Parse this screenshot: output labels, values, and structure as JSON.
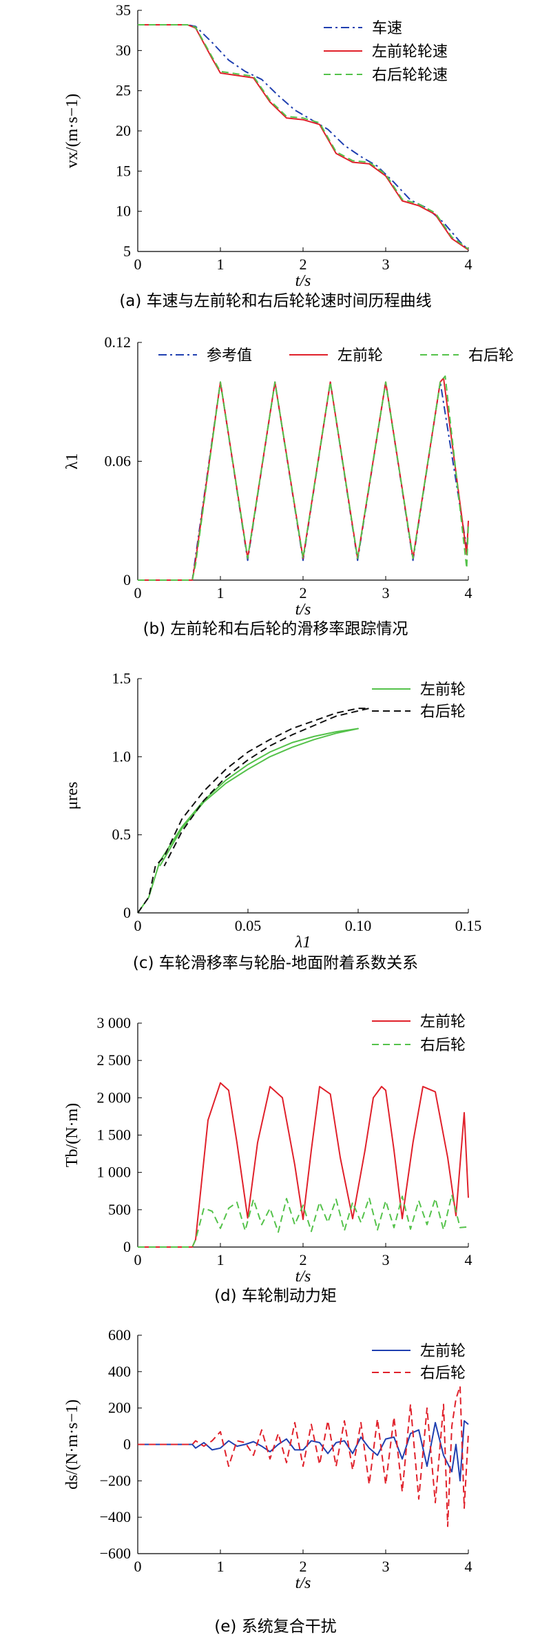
{
  "chart_data": [
    {
      "id": "a",
      "type": "line",
      "caption": "(a) 车速与左前轮和右后轮轮速时间历程曲线",
      "xlabel": "t/s",
      "ylabel": "vx/(m·s−1)",
      "xlim": [
        0,
        4
      ],
      "ylim": [
        5,
        35
      ],
      "xticks": [
        "0",
        "1",
        "2",
        "3",
        "4"
      ],
      "yticks": [
        "5",
        "10",
        "15",
        "20",
        "25",
        "30",
        "35"
      ],
      "legend": "top-right",
      "series": [
        {
          "name": "车速",
          "color": "#1f3fb0",
          "dash": "dashdot",
          "x": [
            0,
            0.6,
            0.7,
            0.9,
            1.1,
            1.3,
            1.5,
            1.7,
            1.9,
            2.1,
            2.3,
            2.5,
            2.7,
            2.9,
            3.1,
            3.3,
            3.5,
            3.7,
            3.9,
            4.0
          ],
          "y": [
            33.2,
            33.2,
            33.0,
            31.0,
            28.8,
            27.4,
            26.4,
            24.4,
            22.6,
            21.4,
            20.2,
            18.2,
            16.8,
            15.6,
            13.6,
            11.4,
            10.4,
            8.6,
            6.2,
            5.2
          ]
        },
        {
          "name": "左前轮轮速",
          "color": "#e0202a",
          "dash": "solid",
          "x": [
            0,
            0.6,
            0.7,
            0.9,
            1.0,
            1.2,
            1.4,
            1.6,
            1.8,
            2.0,
            2.2,
            2.4,
            2.6,
            2.8,
            3.0,
            3.2,
            3.4,
            3.6,
            3.8,
            4.0
          ],
          "y": [
            33.2,
            33.2,
            32.8,
            29.0,
            27.2,
            26.9,
            26.6,
            23.6,
            21.6,
            21.4,
            20.8,
            17.2,
            16.1,
            15.9,
            14.4,
            11.3,
            10.7,
            9.6,
            6.6,
            5.2
          ]
        },
        {
          "name": "右后轮轮速",
          "color": "#54c24a",
          "dash": "dashed",
          "x": [
            0,
            0.6,
            0.7,
            0.9,
            1.0,
            1.2,
            1.4,
            1.6,
            1.8,
            2.0,
            2.2,
            2.4,
            2.6,
            2.8,
            3.0,
            3.2,
            3.4,
            3.6,
            3.8,
            4.0
          ],
          "y": [
            33.2,
            33.2,
            32.9,
            29.2,
            27.4,
            27.1,
            26.8,
            23.8,
            21.8,
            21.6,
            21.0,
            17.4,
            16.3,
            16.1,
            14.6,
            11.5,
            10.9,
            9.8,
            6.8,
            5.3
          ]
        }
      ]
    },
    {
      "id": "b",
      "type": "line",
      "caption": "(b) 左前轮和右后轮的滑移率跟踪情况",
      "xlabel": "t/s",
      "ylabel": "λ1",
      "xlim": [
        0,
        4
      ],
      "ylim": [
        0,
        0.12
      ],
      "xticks": [
        "0",
        "1",
        "2",
        "3",
        "4"
      ],
      "yticks": [
        "0",
        "0.06",
        "0.12"
      ],
      "legend": "top",
      "series": [
        {
          "name": "参考值",
          "color": "#1f3fb0",
          "dash": "dashdot",
          "x": [
            0,
            0.66,
            0.7,
            1.0,
            1.33,
            1.66,
            2.0,
            2.33,
            2.66,
            3.0,
            3.33,
            3.66,
            3.98
          ],
          "y": [
            0,
            0,
            0.012,
            0.1,
            0.01,
            0.1,
            0.01,
            0.1,
            0.01,
            0.1,
            0.01,
            0.1,
            0.016
          ]
        },
        {
          "name": "左前轮",
          "color": "#e0202a",
          "dash": "solid",
          "x": [
            0,
            0.66,
            0.7,
            1.0,
            1.33,
            1.66,
            2.0,
            2.33,
            2.66,
            3.0,
            3.33,
            3.66,
            3.7,
            3.98,
            4.0
          ],
          "y": [
            0,
            0,
            0.01,
            0.1,
            0.011,
            0.1,
            0.011,
            0.1,
            0.011,
            0.1,
            0.011,
            0.1,
            0.102,
            0.013,
            0.03
          ]
        },
        {
          "name": "右后轮",
          "color": "#54c24a",
          "dash": "dashed",
          "x": [
            0,
            0.66,
            0.7,
            1.0,
            1.33,
            1.66,
            2.0,
            2.33,
            2.66,
            3.0,
            3.33,
            3.66,
            3.72,
            3.98,
            4.0
          ],
          "y": [
            0,
            0,
            0.008,
            0.1,
            0.011,
            0.1,
            0.011,
            0.1,
            0.011,
            0.1,
            0.011,
            0.1,
            0.103,
            0.006,
            0.028
          ]
        }
      ]
    },
    {
      "id": "c",
      "type": "line",
      "caption": "(c) 车轮滑移率与轮胎-地面附着系数关系",
      "xlabel": "λ1",
      "ylabel": "μres",
      "xlim": [
        0,
        0.15
      ],
      "ylim": [
        0,
        1.5
      ],
      "xticks": [
        "0",
        "0.05",
        "0.10",
        "0.15"
      ],
      "yticks": [
        "0",
        "0.5",
        "1.0",
        "1.5"
      ],
      "legend": "top-right",
      "series": [
        {
          "name": "左前轮",
          "color": "#54c24a",
          "dash": "solid",
          "x": [
            0,
            0.005,
            0.01,
            0.02,
            0.03,
            0.04,
            0.05,
            0.06,
            0.07,
            0.08,
            0.09,
            0.1,
            0.09,
            0.08,
            0.07,
            0.06,
            0.05,
            0.04,
            0.03,
            0.02,
            0.01
          ],
          "y": [
            0,
            0.1,
            0.33,
            0.55,
            0.72,
            0.85,
            0.95,
            1.03,
            1.09,
            1.13,
            1.16,
            1.18,
            1.15,
            1.11,
            1.06,
            1.0,
            0.92,
            0.83,
            0.71,
            0.54,
            0.3
          ]
        },
        {
          "name": "右后轮",
          "color": "#111111",
          "dash": "dashed",
          "x": [
            0,
            0.005,
            0.008,
            0.012,
            0.02,
            0.03,
            0.04,
            0.05,
            0.06,
            0.07,
            0.08,
            0.09,
            0.1,
            0.105,
            0.09,
            0.08,
            0.07,
            0.06,
            0.05,
            0.04,
            0.03,
            0.02,
            0.012
          ],
          "y": [
            0,
            0.1,
            0.3,
            0.36,
            0.6,
            0.78,
            0.92,
            1.03,
            1.11,
            1.18,
            1.23,
            1.28,
            1.31,
            1.31,
            1.26,
            1.2,
            1.14,
            1.07,
            0.98,
            0.87,
            0.72,
            0.52,
            0.3
          ]
        }
      ]
    },
    {
      "id": "d",
      "type": "line",
      "caption": "(d) 车轮制动力矩",
      "xlabel": "t/s",
      "ylabel": "Tb/(N·m)",
      "xlim": [
        0,
        4
      ],
      "ylim": [
        0,
        3000
      ],
      "xticks": [
        "0",
        "1",
        "2",
        "3",
        "4"
      ],
      "yticks": [
        "0",
        "500",
        "1 000",
        "1 500",
        "2 000",
        "2 500",
        "3 000"
      ],
      "legend": "top-right",
      "series": [
        {
          "name": "左前轮",
          "color": "#e0202a",
          "dash": "solid",
          "x": [
            0,
            0.66,
            0.7,
            0.85,
            1.0,
            1.1,
            1.2,
            1.33,
            1.45,
            1.6,
            1.75,
            1.9,
            2.0,
            2.1,
            2.2,
            2.33,
            2.45,
            2.6,
            2.75,
            2.85,
            2.95,
            3.0,
            3.1,
            3.2,
            3.33,
            3.45,
            3.6,
            3.75,
            3.85,
            3.95,
            4.0
          ],
          "y": [
            0,
            0,
            100,
            1700,
            2200,
            2100,
            1400,
            390,
            1400,
            2150,
            2000,
            1100,
            370,
            1300,
            2150,
            2050,
            1200,
            380,
            1300,
            2000,
            2150,
            2100,
            1300,
            380,
            1400,
            2150,
            2080,
            1200,
            420,
            1800,
            660
          ]
        },
        {
          "name": "右后轮",
          "color": "#54c24a",
          "dash": "dashed",
          "x": [
            0,
            0.66,
            0.7,
            0.8,
            0.9,
            1.0,
            1.1,
            1.2,
            1.3,
            1.4,
            1.5,
            1.6,
            1.7,
            1.8,
            1.9,
            2.0,
            2.1,
            2.2,
            2.3,
            2.4,
            2.5,
            2.6,
            2.7,
            2.8,
            2.9,
            3.0,
            3.1,
            3.2,
            3.3,
            3.4,
            3.5,
            3.6,
            3.7,
            3.8,
            3.9,
            4.0
          ],
          "y": [
            0,
            0,
            100,
            520,
            480,
            250,
            520,
            600,
            220,
            640,
            300,
            520,
            200,
            650,
            300,
            560,
            210,
            600,
            330,
            640,
            220,
            600,
            330,
            660,
            230,
            620,
            260,
            680,
            240,
            620,
            300,
            650,
            230,
            700,
            260,
            270
          ]
        }
      ]
    },
    {
      "id": "e",
      "type": "line",
      "caption": "(e) 系统复合干扰",
      "xlabel": "t/s",
      "ylabel": "ds/(N·m·s−1)",
      "xlim": [
        0,
        4
      ],
      "ylim": [
        -600,
        600
      ],
      "xticks": [
        "0",
        "1",
        "2",
        "3",
        "4"
      ],
      "yticks": [
        "−600",
        "−400",
        "−200",
        "0",
        "200",
        "400",
        "600"
      ],
      "legend": "top-right",
      "series": [
        {
          "name": "左前轮",
          "color": "#1f3fb0",
          "dash": "solid",
          "x": [
            0,
            0.66,
            0.7,
            0.8,
            0.9,
            1.0,
            1.1,
            1.2,
            1.3,
            1.4,
            1.5,
            1.6,
            1.7,
            1.8,
            1.9,
            2.0,
            2.1,
            2.2,
            2.3,
            2.4,
            2.5,
            2.6,
            2.7,
            2.8,
            2.9,
            3.0,
            3.1,
            3.2,
            3.3,
            3.4,
            3.5,
            3.6,
            3.7,
            3.8,
            3.85,
            3.9,
            3.95,
            4.0
          ],
          "y": [
            0,
            0,
            -20,
            10,
            -30,
            -20,
            20,
            -10,
            0,
            15,
            -10,
            -40,
            0,
            30,
            -30,
            -30,
            20,
            10,
            -50,
            10,
            20,
            -50,
            40,
            -20,
            -60,
            30,
            40,
            -80,
            60,
            80,
            -120,
            120,
            -60,
            -150,
            0,
            -200,
            130,
            110
          ]
        },
        {
          "name": "右后轮",
          "color": "#e0202a",
          "dash": "dashed",
          "x": [
            0,
            0.66,
            0.7,
            0.8,
            0.9,
            1.0,
            1.1,
            1.2,
            1.3,
            1.4,
            1.5,
            1.6,
            1.7,
            1.8,
            1.9,
            2.0,
            2.1,
            2.2,
            2.3,
            2.4,
            2.5,
            2.6,
            2.7,
            2.8,
            2.9,
            3.0,
            3.1,
            3.2,
            3.3,
            3.4,
            3.5,
            3.6,
            3.7,
            3.75,
            3.8,
            3.85,
            3.9,
            3.95,
            4.0
          ],
          "y": [
            0,
            0,
            20,
            -10,
            20,
            70,
            -120,
            20,
            10,
            -60,
            80,
            -80,
            60,
            -100,
            120,
            -120,
            110,
            -110,
            130,
            -120,
            130,
            -140,
            120,
            -220,
            140,
            -220,
            150,
            -260,
            220,
            -300,
            200,
            -320,
            220,
            -450,
            100,
            250,
            320,
            -350,
            60
          ]
        }
      ]
    }
  ]
}
